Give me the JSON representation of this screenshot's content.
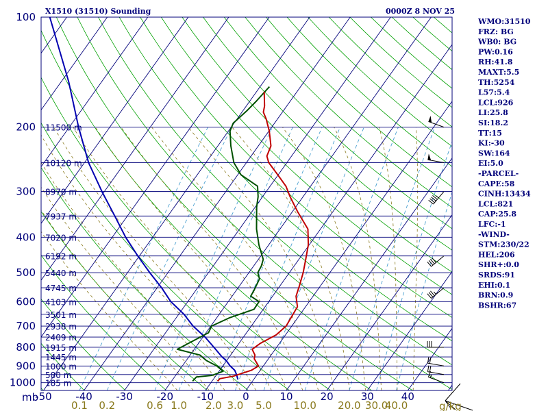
{
  "header": {
    "station": "X1510 (31510) Sounding",
    "time": "0000Z  8 NOV 25"
  },
  "indices": [
    "WMO:31510",
    "FRZ: BG",
    "WB0: BG",
    "PW:0.16",
    "RH:41.8",
    "MAXT:5.5",
    "TH:5254",
    "L57:5.4",
    "LCL:926",
    "LI:25.8",
    "SI:18.2",
    "TT:15",
    "KI:-30",
    "SW:164",
    "EI:5.0",
    "-PARCEL-",
    "CAPE:58",
    "CINH:13434",
    "LCL:821",
    "CAP:25.8",
    "LFC:-1",
    "-WIND-",
    "STM:230/22",
    "HEL:206",
    "SHR+:0.0",
    "SRDS:91",
    "EHI:0.1",
    "BRN:0.9",
    "BSHR:67"
  ],
  "colors": {
    "frame": "#00007a",
    "isobar": "#00007a",
    "isotherm": "#00007a",
    "dry_adiabat": "#00a000",
    "moist_adiabat": "#8a7a1e",
    "mixing_ratio": "#4aa0d0",
    "temperature": "#c00000",
    "dewpoint": "#005000",
    "parcel": "#0000b0",
    "wind_barb": "#000000"
  },
  "chart_data": {
    "type": "skew-t log-p sounding",
    "pressure_axis": {
      "label": "mb",
      "ticks": [
        100,
        200,
        300,
        400,
        500,
        600,
        700,
        800,
        900,
        1000
      ],
      "range": [
        1050,
        100
      ],
      "scale": "log"
    },
    "temperature_axis": {
      "ticks": [
        -50,
        -40,
        -30,
        -20,
        -10,
        0,
        10,
        20,
        30,
        40
      ],
      "range": [
        -50,
        50
      ],
      "skewed": true
    },
    "mixing_ratio_labels": {
      "unit": "g/kg",
      "ticks": [
        "0.1",
        "0.2",
        "0.6",
        "1.0",
        "2.0",
        "3.0",
        "5.0",
        "10.0",
        "20.0",
        "30.0",
        "40.0"
      ]
    },
    "height_labels": [
      {
        "p": 200,
        "label": "11500 m"
      },
      {
        "p": 250,
        "label": "10120 m"
      },
      {
        "p": 300,
        "label": "8970 m"
      },
      {
        "p": 350,
        "label": "7937 m"
      },
      {
        "p": 400,
        "label": "7020 m"
      },
      {
        "p": 450,
        "label": "6192 m"
      },
      {
        "p": 500,
        "label": "5440 m"
      },
      {
        "p": 550,
        "label": "4745 m"
      },
      {
        "p": 600,
        "label": "4103 m"
      },
      {
        "p": 650,
        "label": "3501 m"
      },
      {
        "p": 700,
        "label": "2938 m"
      },
      {
        "p": 750,
        "label": "2409 m"
      },
      {
        "p": 800,
        "label": "1915 m"
      },
      {
        "p": 850,
        "label": "1445 m"
      },
      {
        "p": 900,
        "label": "1000 m"
      },
      {
        "p": 950,
        "label": "580 m"
      },
      {
        "p": 1000,
        "label": "185 m"
      }
    ],
    "temperature_profile": [
      [
        990,
        -8.6
      ],
      [
        975,
        -8.5
      ],
      [
        960,
        -5.6
      ],
      [
        925,
        -2.2
      ],
      [
        900,
        -1.2
      ],
      [
        860,
        -3.5
      ],
      [
        840,
        -4.0
      ],
      [
        810,
        -5.7
      ],
      [
        780,
        -4.7
      ],
      [
        740,
        -2.3
      ],
      [
        700,
        -1.4
      ],
      [
        620,
        -2.0
      ],
      [
        580,
        -4.2
      ],
      [
        540,
        -5.3
      ],
      [
        500,
        -6.6
      ],
      [
        460,
        -8.3
      ],
      [
        420,
        -10.2
      ],
      [
        380,
        -13.1
      ],
      [
        340,
        -18.8
      ],
      [
        310,
        -23.2
      ],
      [
        290,
        -26.1
      ],
      [
        270,
        -30.1
      ],
      [
        250,
        -34.5
      ],
      [
        240,
        -36.1
      ],
      [
        225,
        -36.9
      ],
      [
        205,
        -39.9
      ],
      [
        190,
        -42.8
      ],
      [
        182,
        -44.7
      ],
      [
        175,
        -45.5
      ],
      [
        160,
        -48.1
      ]
    ],
    "dewpoint_profile": [
      [
        990,
        -14.8
      ],
      [
        965,
        -14.6
      ],
      [
        955,
        -11.0
      ],
      [
        930,
        -9.0
      ],
      [
        900,
        -11.5
      ],
      [
        870,
        -15.0
      ],
      [
        840,
        -17.6
      ],
      [
        810,
        -24.2
      ],
      [
        730,
        -19.4
      ],
      [
        700,
        -19.8
      ],
      [
        665,
        -16.9
      ],
      [
        630,
        -12.3
      ],
      [
        600,
        -12.4
      ],
      [
        580,
        -15.4
      ],
      [
        560,
        -15.6
      ],
      [
        520,
        -16.3
      ],
      [
        500,
        -17.8
      ],
      [
        480,
        -18.1
      ],
      [
        460,
        -18.8
      ],
      [
        420,
        -22.4
      ],
      [
        380,
        -25.8
      ],
      [
        330,
        -29.7
      ],
      [
        310,
        -31.1
      ],
      [
        290,
        -33.1
      ],
      [
        270,
        -39.2
      ],
      [
        250,
        -43.1
      ],
      [
        225,
        -46.8
      ],
      [
        205,
        -49.6
      ],
      [
        195,
        -50.2
      ],
      [
        180,
        -49.0
      ],
      [
        170,
        -48.4
      ],
      [
        155,
        -47.7
      ]
    ],
    "parcel_profile": [
      [
        980,
        -3.9
      ],
      [
        950,
        -5.1
      ],
      [
        925,
        -6.3
      ],
      [
        900,
        -8.2
      ],
      [
        870,
        -10.1
      ],
      [
        850,
        -11.8
      ],
      [
        800,
        -15.5
      ],
      [
        750,
        -19.5
      ],
      [
        700,
        -24.4
      ],
      [
        650,
        -28.7
      ],
      [
        600,
        -34.2
      ],
      [
        550,
        -38.9
      ],
      [
        500,
        -44.5
      ],
      [
        450,
        -50.4
      ],
      [
        400,
        -56.7
      ],
      [
        350,
        -63.1
      ],
      [
        300,
        -70.6
      ],
      [
        250,
        -79.0
      ],
      [
        200,
        -87.7
      ],
      [
        150,
        -98.2
      ],
      [
        100,
        -114.2
      ]
    ],
    "dry_adiabats_theta_k": [
      150,
      160,
      170,
      180,
      190,
      200,
      210,
      220,
      230,
      240,
      250,
      260,
      270,
      280,
      290,
      300,
      310,
      320,
      330,
      340,
      350,
      360,
      370,
      380,
      390,
      400,
      410,
      420,
      430,
      440,
      450,
      460,
      470,
      480,
      490,
      500
    ],
    "moist_adiabats_start_c": [
      -20,
      -16,
      -12,
      -8,
      -4,
      0,
      4,
      8,
      12,
      16,
      20,
      24,
      28,
      32,
      36,
      40
    ],
    "mixing_ratio_lines_gkg": [
      0.1,
      0.2,
      0.6,
      1.0,
      2.0,
      3.0,
      5.0,
      10.0,
      20.0,
      30.0,
      40.0
    ],
    "wind_barbs": [
      {
        "p": 200,
        "dir": 290,
        "spd": 50
      },
      {
        "p": 250,
        "dir": 280,
        "spd": 50
      },
      {
        "p": 300,
        "dir": 220,
        "spd": 45
      },
      {
        "p": 450,
        "dir": 230,
        "spd": 40
      },
      {
        "p": 550,
        "dir": 230,
        "spd": 35
      },
      {
        "p": 800,
        "dir": 270,
        "spd": 30
      },
      {
        "p": 900,
        "dir": 280,
        "spd": 20
      },
      {
        "p": 950,
        "dir": 280,
        "spd": 20
      },
      {
        "p": 1000,
        "dir": 290,
        "spd": 15
      }
    ],
    "hodograph": {
      "present": true,
      "location": "bottom-right corner"
    },
    "grid": true
  }
}
